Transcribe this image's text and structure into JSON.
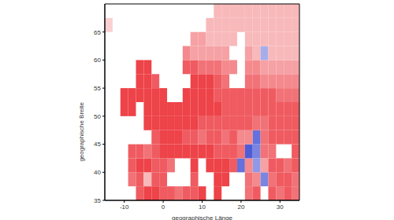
{
  "chart_data": {
    "type": "heatmap",
    "x_label": "geographische Länge",
    "y_label": "geographische Breite",
    "xlim": [
      -15,
      35
    ],
    "ylim": [
      35,
      70
    ],
    "xticks": [
      -10,
      0,
      10,
      20,
      30
    ],
    "yticks": [
      35,
      40,
      45,
      50,
      55,
      60,
      65
    ],
    "cell_size": [
      2,
      2.5
    ],
    "clim": [
      -1,
      1
    ],
    "colors": [
      "#2233cc",
      "#ffffff",
      "#e8141c"
    ],
    "x": [
      -14,
      -12,
      -10,
      -8,
      -6,
      -4,
      -2,
      0,
      2,
      4,
      6,
      8,
      10,
      12,
      14,
      16,
      18,
      20,
      22,
      24,
      26,
      28,
      30,
      32,
      34
    ],
    "y": [
      36.25,
      38.75,
      41.25,
      43.75,
      46.25,
      48.75,
      51.25,
      53.75,
      56.25,
      58.75,
      61.25,
      63.75,
      66.25,
      68.75
    ],
    "values": [
      [
        null,
        null,
        null,
        null,
        0.7,
        0.8,
        0.8,
        0.7,
        0.7,
        0.6,
        0.7,
        0.7,
        0.8,
        null,
        0.8,
        null,
        null,
        null,
        0.6,
        0.7,
        null,
        0.7,
        0.6,
        0.7,
        0.6
      ],
      [
        null,
        null,
        null,
        0.6,
        0.7,
        0.3,
        0.7,
        0.7,
        null,
        null,
        null,
        0.7,
        null,
        null,
        0.8,
        0.8,
        null,
        null,
        0.6,
        0.5,
        -0.6,
        0.6,
        0.7,
        0.7,
        0.6
      ],
      [
        null,
        null,
        null,
        0.7,
        0.8,
        0.8,
        0.7,
        0.7,
        0.6,
        null,
        null,
        0.8,
        null,
        0.8,
        0.8,
        0.8,
        0.7,
        -0.7,
        0.5,
        -0.5,
        0.4,
        0.7,
        0.7,
        0.6,
        0.7
      ],
      [
        null,
        null,
        null,
        0.7,
        0.7,
        0.6,
        0.7,
        0.8,
        0.8,
        0.8,
        0.8,
        0.8,
        0.8,
        0.8,
        0.7,
        0.7,
        0.7,
        0.6,
        -0.8,
        -0.6,
        0.6,
        0.6,
        null,
        null,
        0.7
      ],
      [
        null,
        null,
        null,
        null,
        null,
        null,
        0.7,
        0.8,
        0.8,
        0.8,
        0.7,
        0.7,
        0.6,
        0.7,
        0.7,
        0.6,
        0.7,
        0.5,
        0.5,
        -0.7,
        0.6,
        0.7,
        0.7,
        0.7,
        0.7
      ],
      [
        null,
        null,
        null,
        null,
        null,
        0.8,
        0.8,
        0.8,
        0.8,
        0.8,
        0.8,
        0.8,
        0.7,
        0.7,
        0.7,
        0.7,
        0.7,
        0.7,
        0.7,
        0.6,
        0.6,
        0.7,
        0.7,
        0.7,
        0.7
      ],
      [
        null,
        null,
        0.8,
        0.8,
        null,
        0.8,
        0.8,
        0.8,
        0.8,
        0.8,
        0.8,
        0.8,
        0.8,
        0.8,
        0.8,
        0.7,
        0.7,
        0.7,
        0.7,
        0.7,
        0.7,
        0.7,
        0.7,
        0.7,
        0.7
      ],
      [
        null,
        null,
        0.8,
        0.8,
        0.8,
        0.8,
        0.8,
        0.8,
        null,
        null,
        0.8,
        0.8,
        0.8,
        0.8,
        0.7,
        0.7,
        0.7,
        0.7,
        0.7,
        0.7,
        0.7,
        0.7,
        0.6,
        0.6,
        0.6
      ],
      [
        null,
        null,
        null,
        null,
        0.8,
        0.8,
        0.7,
        null,
        null,
        null,
        null,
        0.8,
        0.8,
        0.8,
        0.7,
        0.6,
        null,
        null,
        0.6,
        0.6,
        0.5,
        0.5,
        0.5,
        0.5,
        0.5
      ],
      [
        null,
        null,
        null,
        null,
        0.8,
        0.8,
        null,
        null,
        null,
        null,
        0.7,
        0.7,
        0.6,
        0.6,
        0.6,
        0.5,
        0.5,
        null,
        0.5,
        0.5,
        0.4,
        0.4,
        0.4,
        0.4,
        0.4
      ],
      [
        null,
        null,
        null,
        null,
        null,
        null,
        null,
        null,
        null,
        null,
        0.5,
        0.4,
        0.4,
        0.4,
        0.4,
        0.4,
        null,
        null,
        0.4,
        0.3,
        -0.4,
        0.3,
        0.3,
        0.3,
        0.3
      ],
      [
        null,
        null,
        null,
        null,
        null,
        null,
        null,
        null,
        null,
        null,
        null,
        0.4,
        0.4,
        0.3,
        0.3,
        0.3,
        0.3,
        null,
        0.3,
        0.3,
        0.3,
        0.3,
        0.3,
        0.3,
        0.3
      ],
      [
        0.2,
        null,
        null,
        null,
        null,
        null,
        null,
        null,
        null,
        null,
        null,
        null,
        null,
        0.3,
        0.3,
        0.3,
        0.3,
        0.3,
        0.3,
        0.3,
        0.3,
        0.3,
        0.3,
        0.3,
        0.3
      ],
      [
        null,
        null,
        null,
        null,
        null,
        null,
        null,
        null,
        null,
        null,
        null,
        null,
        null,
        null,
        0.3,
        0.3,
        0.3,
        0.3,
        0.3,
        0.3,
        0.3,
        0.3,
        0.3,
        0.3,
        0.3
      ]
    ]
  }
}
